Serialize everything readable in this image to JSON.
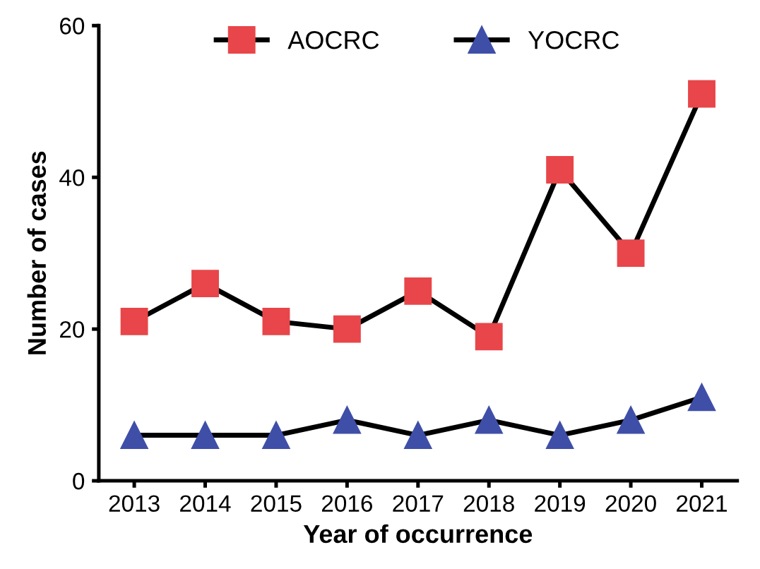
{
  "chart_data": {
    "type": "line",
    "categories": [
      "2013",
      "2014",
      "2015",
      "2016",
      "2017",
      "2018",
      "2019",
      "2020",
      "2021"
    ],
    "series": [
      {
        "name": "AOCRC",
        "color": "#e8464a",
        "marker": "square",
        "values": [
          21,
          26,
          21,
          20,
          25,
          19,
          41,
          30,
          51
        ]
      },
      {
        "name": "YOCRC",
        "color": "#3f4fa8",
        "marker": "triangle",
        "values": [
          6,
          6,
          6,
          8,
          6,
          8,
          6,
          8,
          11
        ]
      }
    ],
    "xlabel": "Year of occurrence",
    "ylabel": "Number of cases",
    "ylim": [
      0,
      60
    ],
    "yticks": [
      0,
      20,
      40,
      60
    ],
    "grid": false,
    "legend": "top",
    "line_style": "solid"
  }
}
